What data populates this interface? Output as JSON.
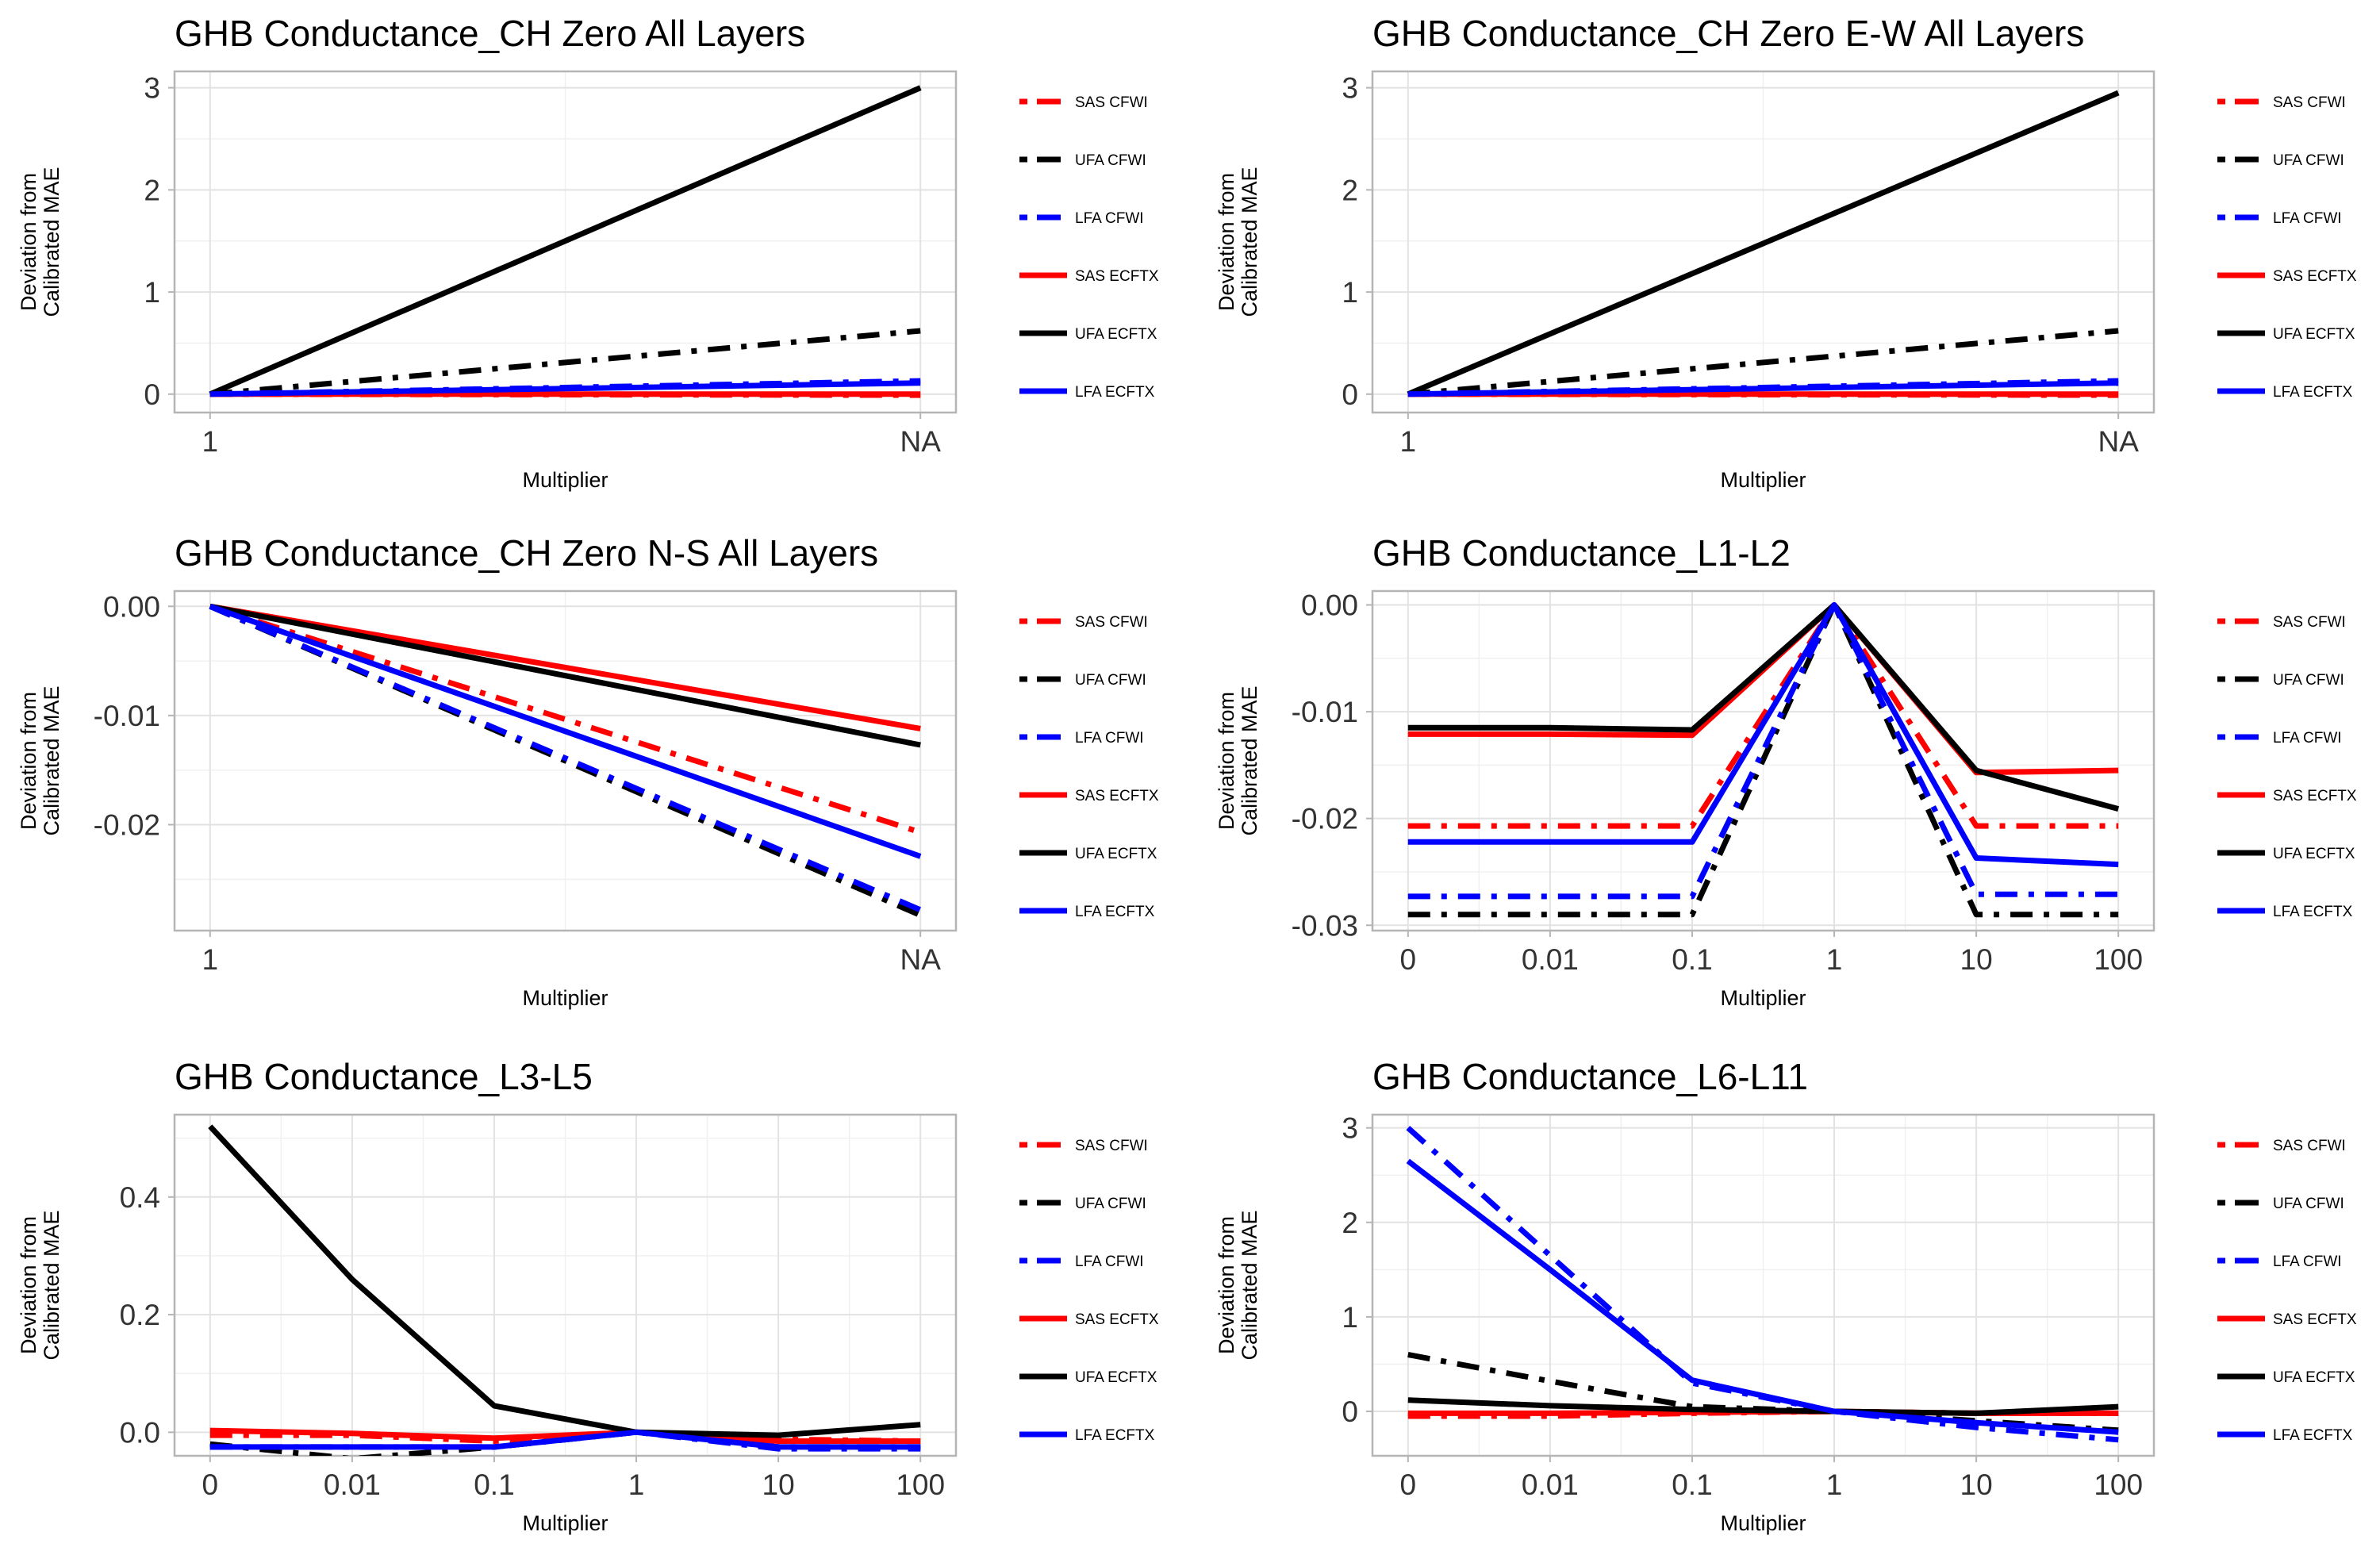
{
  "series_styles": [
    {
      "name": "SAS CFWI",
      "color": "#ff0000",
      "dash": "dashdot"
    },
    {
      "name": "UFA CFWI",
      "color": "#000000",
      "dash": "dashdot"
    },
    {
      "name": "LFA CFWI",
      "color": "#0000ff",
      "dash": "dashdot"
    },
    {
      "name": "SAS ECFTX",
      "color": "#ff0000",
      "dash": "solid"
    },
    {
      "name": "UFA ECFTX",
      "color": "#000000",
      "dash": "solid"
    },
    {
      "name": "LFA ECFTX",
      "color": "#0000ff",
      "dash": "solid"
    }
  ],
  "chart_data": [
    {
      "type": "line",
      "title": "GHB Conductance_CH Zero All Layers",
      "xlabel": "Multiplier",
      "ylabel": [
        "Deviation from",
        "Calibrated MAE"
      ],
      "categories": [
        "1",
        "NA"
      ],
      "ylim": [
        -0.18,
        3.16
      ],
      "yticks": [
        0,
        1,
        2,
        3
      ],
      "yticklabels": [
        "0",
        "1",
        "2",
        "3"
      ],
      "grid": true,
      "legend_position": "right",
      "series": [
        {
          "name": "SAS CFWI",
          "values": [
            0,
            -0.01
          ]
        },
        {
          "name": "UFA CFWI",
          "values": [
            0,
            0.62
          ]
        },
        {
          "name": "LFA CFWI",
          "values": [
            0,
            0.13
          ]
        },
        {
          "name": "SAS ECFTX",
          "values": [
            0,
            0.0
          ]
        },
        {
          "name": "UFA ECFTX",
          "values": [
            0,
            3.0
          ]
        },
        {
          "name": "LFA ECFTX",
          "values": [
            0,
            0.11
          ]
        }
      ]
    },
    {
      "type": "line",
      "title": "GHB Conductance_CH Zero E-W All Layers",
      "xlabel": "Multiplier",
      "ylabel": [
        "Deviation from",
        "Calibrated MAE"
      ],
      "categories": [
        "1",
        "NA"
      ],
      "ylim": [
        -0.18,
        3.16
      ],
      "yticks": [
        0,
        1,
        2,
        3
      ],
      "yticklabels": [
        "0",
        "1",
        "2",
        "3"
      ],
      "grid": true,
      "legend_position": "right",
      "series": [
        {
          "name": "SAS CFWI",
          "values": [
            0,
            -0.01
          ]
        },
        {
          "name": "UFA CFWI",
          "values": [
            0,
            0.62
          ]
        },
        {
          "name": "LFA CFWI",
          "values": [
            0,
            0.13
          ]
        },
        {
          "name": "SAS ECFTX",
          "values": [
            0,
            0.0
          ]
        },
        {
          "name": "UFA ECFTX",
          "values": [
            0,
            2.95
          ]
        },
        {
          "name": "LFA ECFTX",
          "values": [
            0,
            0.11
          ]
        }
      ]
    },
    {
      "type": "line",
      "title": "GHB Conductance_CH Zero N-S All Layers",
      "xlabel": "Multiplier",
      "ylabel": [
        "Deviation from",
        "Calibrated MAE"
      ],
      "categories": [
        "1",
        "NA"
      ],
      "ylim": [
        -0.0297,
        0.0014
      ],
      "yticks": [
        0,
        -0.01,
        -0.02
      ],
      "yticklabels": [
        "0.00",
        "-0.01",
        "-0.02"
      ],
      "grid": true,
      "legend_position": "right",
      "series": [
        {
          "name": "SAS CFWI",
          "values": [
            0,
            -0.0207
          ]
        },
        {
          "name": "UFA CFWI",
          "values": [
            0,
            -0.0283
          ]
        },
        {
          "name": "LFA CFWI",
          "values": [
            0,
            -0.0278
          ]
        },
        {
          "name": "SAS ECFTX",
          "values": [
            0,
            -0.0112
          ]
        },
        {
          "name": "UFA ECFTX",
          "values": [
            0,
            -0.0127
          ]
        },
        {
          "name": "LFA ECFTX",
          "values": [
            0,
            -0.0229
          ]
        }
      ]
    },
    {
      "type": "line",
      "title": "GHB Conductance_L1-L2",
      "xlabel": "Multiplier",
      "ylabel": [
        "Deviation from",
        "Calibrated MAE"
      ],
      "categories": [
        "0",
        "0.01",
        "0.1",
        "1",
        "10",
        "100"
      ],
      "ylim": [
        -0.0305,
        0.0013
      ],
      "yticks": [
        0,
        -0.01,
        -0.02,
        -0.03
      ],
      "yticklabels": [
        "0.00",
        "-0.01",
        "-0.02",
        "-0.03"
      ],
      "grid": true,
      "legend_position": "right",
      "series": [
        {
          "name": "SAS CFWI",
          "values": [
            -0.0207,
            -0.0207,
            -0.0207,
            0,
            -0.0207,
            -0.0207
          ]
        },
        {
          "name": "UFA CFWI",
          "values": [
            -0.029,
            -0.029,
            -0.029,
            0,
            -0.029,
            -0.029
          ]
        },
        {
          "name": "LFA CFWI",
          "values": [
            -0.0273,
            -0.0273,
            -0.0273,
            0,
            -0.0271,
            -0.0271
          ]
        },
        {
          "name": "SAS ECFTX",
          "values": [
            -0.0121,
            -0.0121,
            -0.0122,
            0,
            -0.0157,
            -0.0155
          ]
        },
        {
          "name": "UFA ECFTX",
          "values": [
            -0.0115,
            -0.0115,
            -0.0117,
            0,
            -0.0155,
            -0.0191
          ]
        },
        {
          "name": "LFA ECFTX",
          "values": [
            -0.0222,
            -0.0222,
            -0.0222,
            0,
            -0.0237,
            -0.0243
          ]
        }
      ]
    },
    {
      "type": "line",
      "title": "GHB Conductance_L3-L5",
      "xlabel": "Multiplier",
      "ylabel": [
        "Deviation from",
        "Calibrated MAE"
      ],
      "categories": [
        "0",
        "0.01",
        "0.1",
        "1",
        "10",
        "100"
      ],
      "ylim": [
        -0.04,
        0.54
      ],
      "yticks": [
        0,
        0.2,
        0.4
      ],
      "yticklabels": [
        "0.0",
        "0.2",
        "0.4"
      ],
      "grid": true,
      "legend_position": "right",
      "series": [
        {
          "name": "SAS CFWI",
          "values": [
            -0.005,
            -0.005,
            -0.015,
            0,
            -0.012,
            -0.015
          ]
        },
        {
          "name": "UFA CFWI",
          "values": [
            -0.02,
            -0.045,
            -0.025,
            0,
            -0.025,
            -0.025
          ]
        },
        {
          "name": "LFA CFWI",
          "values": [
            -0.025,
            -0.025,
            -0.025,
            0,
            -0.028,
            -0.028
          ]
        },
        {
          "name": "SAS ECFTX",
          "values": [
            0.003,
            -0.002,
            -0.01,
            0,
            -0.015,
            -0.015
          ]
        },
        {
          "name": "UFA ECFTX",
          "values": [
            0.52,
            0.26,
            0.045,
            0,
            -0.005,
            0.013
          ]
        },
        {
          "name": "LFA ECFTX",
          "values": [
            -0.025,
            -0.025,
            -0.025,
            0,
            -0.025,
            -0.025
          ]
        }
      ]
    },
    {
      "type": "line",
      "title": "GHB Conductance_L6-L11",
      "xlabel": "Multiplier",
      "ylabel": [
        "Deviation from",
        "Calibrated MAE"
      ],
      "categories": [
        "0",
        "0.01",
        "0.1",
        "1",
        "10",
        "100"
      ],
      "ylim": [
        -0.47,
        3.14
      ],
      "yticks": [
        0,
        1,
        2,
        3
      ],
      "yticklabels": [
        "0",
        "1",
        "2",
        "3"
      ],
      "grid": true,
      "legend_position": "right",
      "series": [
        {
          "name": "SAS CFWI",
          "values": [
            -0.05,
            -0.05,
            -0.02,
            0,
            -0.02,
            -0.02
          ]
        },
        {
          "name": "UFA CFWI",
          "values": [
            0.6,
            0.32,
            0.05,
            0,
            -0.1,
            -0.2
          ]
        },
        {
          "name": "LFA CFWI",
          "values": [
            3.0,
            1.65,
            0.3,
            0,
            -0.17,
            -0.3
          ]
        },
        {
          "name": "SAS ECFTX",
          "values": [
            -0.02,
            -0.02,
            -0.01,
            0,
            -0.02,
            -0.02
          ]
        },
        {
          "name": "UFA ECFTX",
          "values": [
            0.12,
            0.06,
            0.02,
            0,
            -0.02,
            0.05
          ]
        },
        {
          "name": "LFA ECFTX",
          "values": [
            2.65,
            1.5,
            0.33,
            0,
            -0.12,
            -0.22
          ]
        }
      ]
    }
  ]
}
